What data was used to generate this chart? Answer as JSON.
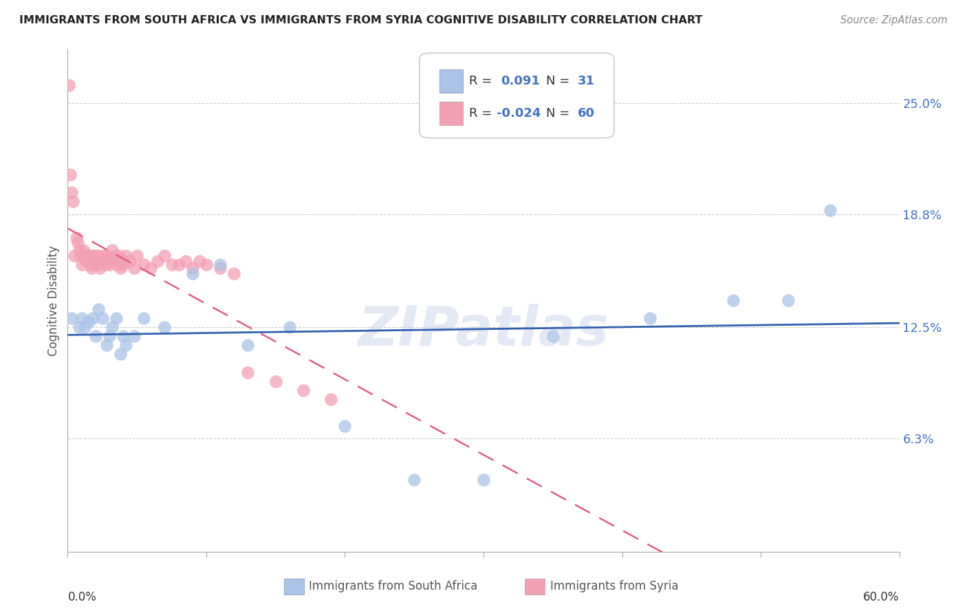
{
  "title": "IMMIGRANTS FROM SOUTH AFRICA VS IMMIGRANTS FROM SYRIA COGNITIVE DISABILITY CORRELATION CHART",
  "source": "Source: ZipAtlas.com",
  "ylabel": "Cognitive Disability",
  "yticks_labels": [
    "25.0%",
    "18.8%",
    "12.5%",
    "6.3%"
  ],
  "yticks_values": [
    0.25,
    0.188,
    0.125,
    0.063
  ],
  "xlim": [
    0.0,
    0.6
  ],
  "ylim": [
    0.0,
    0.28
  ],
  "south_africa_R": 0.091,
  "south_africa_N": 31,
  "syria_R": -0.024,
  "syria_N": 60,
  "south_africa_color": "#aac4e8",
  "syria_color": "#f4a0b4",
  "trendline_sa_color": "#3060b0",
  "trendline_sy_color": "#e06080",
  "watermark": "ZIPatlas",
  "south_africa_x": [
    0.003,
    0.008,
    0.01,
    0.012,
    0.015,
    0.018,
    0.02,
    0.022,
    0.025,
    0.028,
    0.03,
    0.032,
    0.035,
    0.038,
    0.04,
    0.042,
    0.048,
    0.055,
    0.07,
    0.09,
    0.11,
    0.13,
    0.16,
    0.2,
    0.25,
    0.3,
    0.35,
    0.42,
    0.48,
    0.52,
    0.55
  ],
  "south_africa_y": [
    0.13,
    0.125,
    0.13,
    0.125,
    0.128,
    0.13,
    0.12,
    0.135,
    0.13,
    0.115,
    0.12,
    0.125,
    0.13,
    0.11,
    0.12,
    0.115,
    0.12,
    0.13,
    0.125,
    0.155,
    0.16,
    0.115,
    0.125,
    0.07,
    0.04,
    0.04,
    0.12,
    0.13,
    0.14,
    0.14,
    0.19
  ],
  "syria_x": [
    0.001,
    0.002,
    0.003,
    0.004,
    0.005,
    0.006,
    0.007,
    0.008,
    0.009,
    0.01,
    0.011,
    0.012,
    0.013,
    0.014,
    0.015,
    0.016,
    0.017,
    0.018,
    0.019,
    0.02,
    0.021,
    0.022,
    0.023,
    0.024,
    0.025,
    0.026,
    0.027,
    0.028,
    0.029,
    0.03,
    0.031,
    0.032,
    0.033,
    0.034,
    0.035,
    0.036,
    0.037,
    0.038,
    0.039,
    0.04,
    0.042,
    0.045,
    0.048,
    0.05,
    0.055,
    0.06,
    0.065,
    0.07,
    0.075,
    0.08,
    0.085,
    0.09,
    0.095,
    0.1,
    0.11,
    0.12,
    0.13,
    0.15,
    0.17,
    0.19
  ],
  "syria_y": [
    0.26,
    0.21,
    0.2,
    0.195,
    0.165,
    0.175,
    0.172,
    0.168,
    0.165,
    0.16,
    0.168,
    0.165,
    0.162,
    0.165,
    0.165,
    0.16,
    0.158,
    0.165,
    0.162,
    0.165,
    0.16,
    0.165,
    0.158,
    0.163,
    0.162,
    0.165,
    0.16,
    0.165,
    0.163,
    0.16,
    0.162,
    0.168,
    0.162,
    0.165,
    0.16,
    0.162,
    0.165,
    0.158,
    0.163,
    0.16,
    0.165,
    0.162,
    0.158,
    0.165,
    0.16,
    0.158,
    0.162,
    0.165,
    0.16,
    0.16,
    0.162,
    0.158,
    0.162,
    0.16,
    0.158,
    0.155,
    0.1,
    0.095,
    0.09,
    0.085
  ]
}
